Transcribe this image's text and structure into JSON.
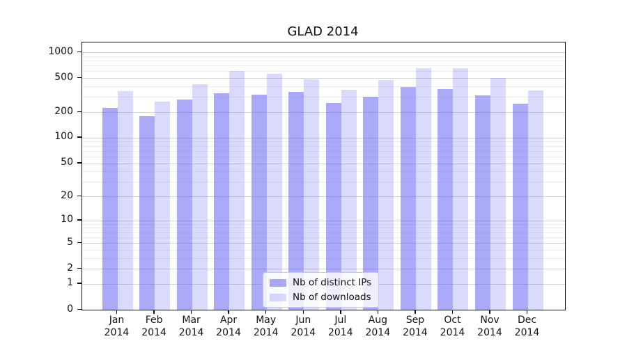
{
  "chart_data": {
    "type": "bar",
    "title": "GLAD 2014",
    "xlabel": "",
    "ylabel": "",
    "categories": [
      "Jan 2014",
      "Feb 2014",
      "Mar 2014",
      "Apr 2014",
      "May 2014",
      "Jun 2014",
      "Jul 2014",
      "Aug 2014",
      "Sep 2014",
      "Oct 2014",
      "Nov 2014",
      "Dec 2014"
    ],
    "series": [
      {
        "name": "Nb of distinct IPs",
        "base_color": "#5858f2",
        "alpha": 0.51,
        "composite_color": "#aaaaf9",
        "values": [
          225,
          180,
          280,
          330,
          320,
          345,
          255,
          305,
          390,
          370,
          315,
          250
        ]
      },
      {
        "name": "Nb of downloads",
        "base_color": "#5858f2",
        "alpha": 0.22,
        "composite_color": "#dadaf8",
        "values": [
          350,
          265,
          425,
          610,
          560,
          485,
          365,
          475,
          650,
          650,
          500,
          360
        ]
      }
    ],
    "yticks": [
      0,
      1,
      2,
      5,
      10,
      20,
      50,
      100,
      200,
      500,
      1000
    ],
    "scale": "log1p",
    "ylim": [
      0,
      1300
    ],
    "grid": "on",
    "legend_position": "lower center",
    "major_grid_color": "#d2d2d2",
    "minor_grid_color": "#ededed"
  }
}
